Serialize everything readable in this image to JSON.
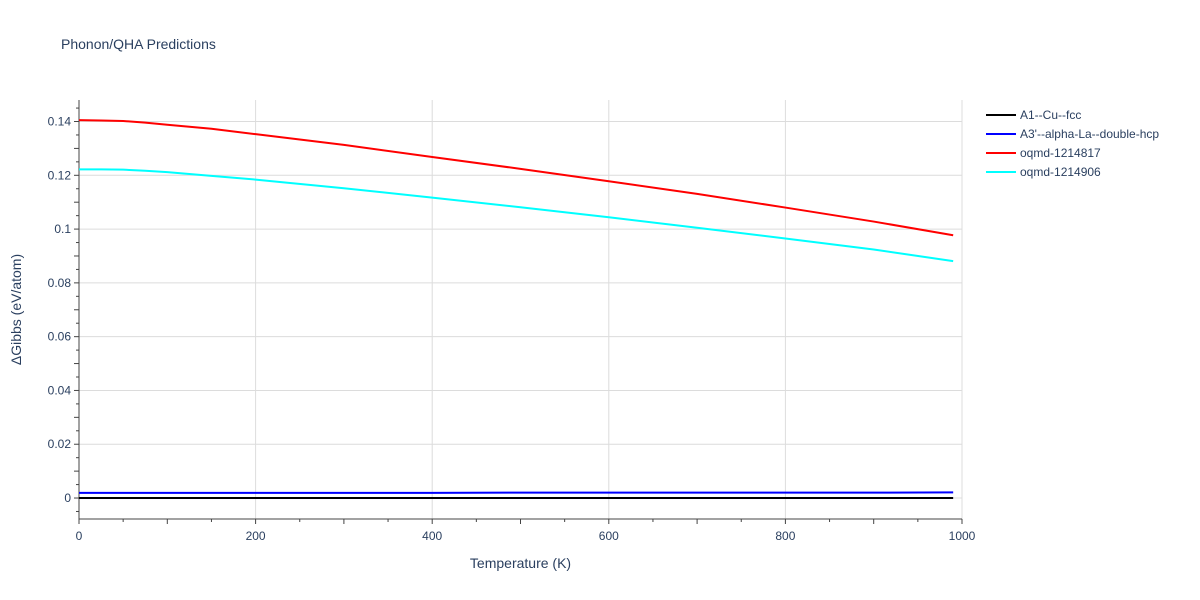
{
  "chart_data": {
    "type": "line",
    "title": "Phonon/QHA Predictions",
    "xlabel": "Temperature (K)",
    "ylabel": "ΔGibbs (eV/atom)",
    "xlim": [
      0,
      1000
    ],
    "ylim": [
      -0.0078,
      0.148
    ],
    "x_ticks": [
      0,
      200,
      400,
      600,
      800,
      1000
    ],
    "x_tick_labels": [
      "0",
      "200",
      "400",
      "600",
      "800",
      "1000"
    ],
    "y_ticks": [
      0,
      0.02,
      0.04,
      0.06,
      0.08,
      0.1,
      0.12,
      0.14
    ],
    "y_tick_labels": [
      "0",
      "0.02",
      "0.04",
      "0.06",
      "0.08",
      "0.1",
      "0.12",
      "0.14"
    ],
    "grid": true,
    "legend_position": "top-right",
    "series": [
      {
        "name": "A1--Cu--fcc",
        "color": "#000000",
        "x": [
          0,
          100,
          200,
          300,
          400,
          500,
          600,
          700,
          800,
          900,
          990
        ],
        "y": [
          0,
          0,
          0,
          0,
          0,
          0,
          0,
          0,
          0,
          0,
          0
        ]
      },
      {
        "name": "A3'--alpha-La--double-hcp",
        "color": "#0000ff",
        "x": [
          0,
          100,
          200,
          300,
          400,
          500,
          600,
          700,
          800,
          900,
          990
        ],
        "y": [
          0.0019,
          0.0019,
          0.0019,
          0.0019,
          0.0019,
          0.002,
          0.002,
          0.002,
          0.002,
          0.002,
          0.0021
        ]
      },
      {
        "name": "oqmd-1214817",
        "color": "#ff0000",
        "x": [
          0,
          25,
          50,
          75,
          100,
          150,
          200,
          300,
          400,
          500,
          600,
          700,
          800,
          900,
          990
        ],
        "y": [
          0.1405,
          0.1404,
          0.1402,
          0.1396,
          0.1388,
          0.1373,
          0.1353,
          0.1313,
          0.1268,
          0.1224,
          0.1178,
          0.1131,
          0.108,
          0.1028,
          0.0977
        ]
      },
      {
        "name": "oqmd-1214906",
        "color": "#00ffff",
        "x": [
          0,
          25,
          50,
          75,
          100,
          150,
          200,
          300,
          400,
          500,
          600,
          700,
          800,
          900,
          990
        ],
        "y": [
          0.1222,
          0.1222,
          0.1221,
          0.1217,
          0.1212,
          0.1198,
          0.1184,
          0.1152,
          0.1117,
          0.1081,
          0.1044,
          0.1005,
          0.0965,
          0.0924,
          0.0881
        ]
      }
    ]
  }
}
